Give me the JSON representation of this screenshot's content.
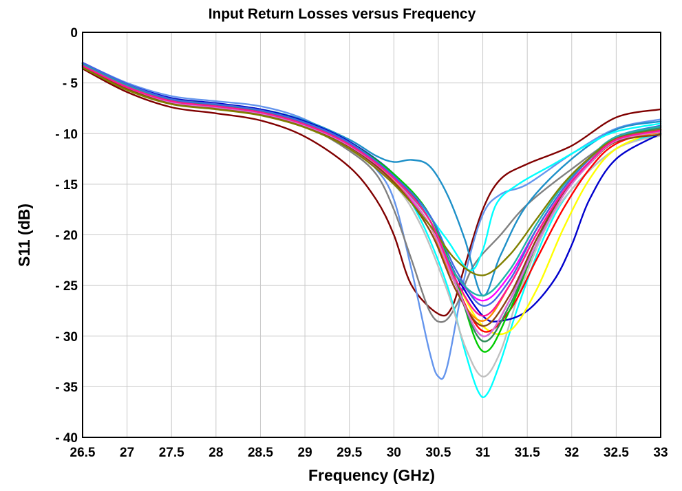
{
  "chart_data": {
    "type": "line",
    "title": "Input Return Losses versus Frequency",
    "xlabel": "Frequency (GHz)",
    "ylabel": "S11 (dB)",
    "xlim": [
      26.5,
      33
    ],
    "ylim": [
      -40,
      0
    ],
    "x_ticks": [
      26.5,
      27,
      27.5,
      28,
      28.5,
      29,
      29.5,
      30,
      30.5,
      31,
      31.5,
      32,
      32.5,
      33
    ],
    "x_tick_labels": [
      "26.5",
      "27",
      "27.5",
      "28",
      "28.5",
      "29",
      "29.5",
      "30",
      "30.5",
      "31",
      "31.5",
      "32",
      "32.5",
      "33"
    ],
    "y_ticks": [
      0,
      -5,
      -10,
      -15,
      -20,
      -25,
      -30,
      -35,
      -40
    ],
    "y_tick_labels": [
      "0",
      "- 5",
      "- 10",
      "- 15",
      "- 20",
      "- 25",
      "- 30",
      "- 35",
      "- 40"
    ],
    "grid": true,
    "legend": "none",
    "series": [
      {
        "color": "#800000",
        "x": [
          26.5,
          27,
          27.5,
          28,
          28.5,
          29,
          29.5,
          29.8,
          30,
          30.2,
          30.5,
          30.65,
          30.8,
          31,
          31.2,
          31.5,
          32,
          32.5,
          33
        ],
        "y": [
          -3.6,
          -5.9,
          -7.4,
          -8.0,
          -8.7,
          -10.3,
          -13.3,
          -16.5,
          -20.0,
          -25.0,
          -27.8,
          -27.2,
          -23.0,
          -17.5,
          -14.5,
          -13.0,
          -11.2,
          -8.4,
          -7.6
        ]
      },
      {
        "color": "#6495ed",
        "x": [
          26.5,
          27,
          27.5,
          28,
          28.5,
          29,
          29.5,
          29.8,
          30,
          30.2,
          30.4,
          30.5,
          30.6,
          30.8,
          31,
          31.2,
          31.5,
          32,
          32.5,
          33
        ],
        "y": [
          -3.0,
          -5.0,
          -6.3,
          -6.8,
          -7.3,
          -8.6,
          -11.2,
          -13.5,
          -16.5,
          -23.5,
          -31.5,
          -34.0,
          -33.0,
          -24.0,
          -18.0,
          -16.0,
          -15.0,
          -12.0,
          -9.5,
          -8.6
        ]
      },
      {
        "color": "#808080",
        "x": [
          26.5,
          27,
          27.5,
          28,
          28.5,
          29,
          29.5,
          29.8,
          30,
          30.2,
          30.4,
          30.55,
          30.7,
          30.9,
          31.2,
          31.5,
          32,
          32.5,
          33
        ],
        "y": [
          -3.4,
          -5.5,
          -6.9,
          -7.4,
          -8.0,
          -9.2,
          -11.7,
          -14.0,
          -17.5,
          -22.5,
          -27.5,
          -28.6,
          -27.0,
          -23.0,
          -20.0,
          -17.0,
          -13.5,
          -10.5,
          -9.3
        ]
      },
      {
        "color": "#1e90c8",
        "x": [
          26.5,
          27,
          27.5,
          28,
          28.5,
          29,
          29.5,
          29.8,
          30,
          30.2,
          30.4,
          30.6,
          30.8,
          31,
          31.2,
          31.5,
          32,
          32.5,
          33
        ],
        "y": [
          -3.2,
          -5.2,
          -6.6,
          -7.1,
          -7.6,
          -8.7,
          -10.6,
          -12.2,
          -12.8,
          -12.6,
          -13.2,
          -16.0,
          -20.5,
          -26.0,
          -22.0,
          -17.0,
          -12.5,
          -9.6,
          -8.8
        ]
      },
      {
        "color": "#00ffff",
        "x": [
          26.5,
          27,
          27.5,
          28,
          28.5,
          29,
          29.5,
          30,
          30.3,
          30.6,
          30.8,
          30.95,
          31.05,
          31.2,
          31.4,
          31.7,
          32,
          32.5,
          33
        ],
        "y": [
          -3.3,
          -5.4,
          -6.8,
          -7.3,
          -7.9,
          -9.0,
          -11.0,
          -14.5,
          -18.5,
          -25.0,
          -31.5,
          -35.5,
          -35.7,
          -32.5,
          -27.0,
          -20.0,
          -15.5,
          -11.5,
          -10.0
        ]
      },
      {
        "color": "#c0c0c0",
        "x": [
          26.5,
          27,
          27.5,
          28,
          28.5,
          29,
          29.5,
          30,
          30.3,
          30.6,
          30.8,
          31,
          31.2,
          31.4,
          31.7,
          32,
          32.5,
          33
        ],
        "y": [
          -3.4,
          -5.6,
          -7.0,
          -7.5,
          -8.1,
          -9.3,
          -11.5,
          -15.0,
          -19.0,
          -25.5,
          -31.0,
          -34.0,
          -31.5,
          -26.0,
          -19.5,
          -15.5,
          -11.5,
          -10.2
        ]
      },
      {
        "color": "#00ffff",
        "x": [
          26.5,
          27,
          27.5,
          28,
          28.5,
          29,
          29.5,
          30,
          30.3,
          30.6,
          30.85,
          31,
          31.15,
          31.4,
          31.8,
          32.2,
          32.5,
          33
        ],
        "y": [
          -3.1,
          -5.2,
          -6.6,
          -7.1,
          -7.7,
          -8.9,
          -10.9,
          -14.0,
          -17.0,
          -20.5,
          -23.5,
          -21.5,
          -17.0,
          -15.0,
          -13.0,
          -11.0,
          -9.8,
          -9.0
        ]
      },
      {
        "color": "#0000cd",
        "x": [
          26.5,
          27,
          27.5,
          28,
          28.5,
          29,
          29.5,
          30,
          30.4,
          30.7,
          31,
          31.2,
          31.5,
          31.8,
          32,
          32.2,
          32.5,
          33
        ],
        "y": [
          -3.0,
          -5.1,
          -6.5,
          -7.0,
          -7.6,
          -8.8,
          -10.8,
          -14.0,
          -18.5,
          -24.0,
          -28.0,
          -28.5,
          -27.5,
          -24.5,
          -21.0,
          -16.5,
          -12.5,
          -10.0
        ]
      },
      {
        "color": "#ffff00",
        "x": [
          26.5,
          27,
          27.5,
          28,
          28.5,
          29,
          29.5,
          30,
          30.4,
          30.7,
          31,
          31.3,
          31.6,
          31.9,
          32.2,
          32.5,
          33
        ],
        "y": [
          -3.2,
          -5.3,
          -6.7,
          -7.2,
          -7.8,
          -9.0,
          -11.0,
          -14.2,
          -18.5,
          -24.5,
          -29.0,
          -29.5,
          -25.5,
          -19.5,
          -14.5,
          -11.5,
          -9.6
        ]
      },
      {
        "color": "#ff0000",
        "x": [
          26.5,
          27,
          27.5,
          28,
          28.5,
          29,
          29.5,
          30,
          30.4,
          30.7,
          31,
          31.3,
          31.6,
          31.9,
          32.2,
          32.5,
          33
        ],
        "y": [
          -3.3,
          -5.4,
          -6.9,
          -7.4,
          -8.0,
          -9.2,
          -11.2,
          -14.5,
          -19.0,
          -25.0,
          -29.5,
          -27.5,
          -22.5,
          -17.5,
          -13.5,
          -11.0,
          -9.6
        ]
      },
      {
        "color": "#00cc00",
        "x": [
          26.5,
          27,
          27.5,
          28,
          28.5,
          29,
          29.5,
          30,
          30.4,
          30.7,
          31,
          31.3,
          31.6,
          31.9,
          32.2,
          32.5,
          33
        ],
        "y": [
          -3.1,
          -5.2,
          -6.6,
          -7.1,
          -7.7,
          -8.9,
          -10.9,
          -14.0,
          -18.0,
          -24.5,
          -31.5,
          -27.5,
          -21.0,
          -16.0,
          -12.8,
          -10.5,
          -9.3
        ]
      },
      {
        "color": "#ff00ff",
        "x": [
          26.5,
          27,
          27.5,
          28,
          28.5,
          29,
          29.5,
          30,
          30.4,
          30.7,
          31,
          31.3,
          31.6,
          31.9,
          32.2,
          32.5,
          33
        ],
        "y": [
          -3.4,
          -5.5,
          -7.0,
          -7.5,
          -8.1,
          -9.3,
          -11.3,
          -14.8,
          -19.0,
          -24.0,
          -26.5,
          -24.0,
          -19.5,
          -15.5,
          -12.5,
          -10.4,
          -9.5
        ]
      },
      {
        "color": "#9370db",
        "x": [
          26.5,
          27,
          27.5,
          28,
          28.5,
          29,
          29.5,
          30,
          30.4,
          30.7,
          31,
          31.3,
          31.6,
          31.9,
          32.2,
          32.5,
          33
        ],
        "y": [
          -3.2,
          -5.3,
          -6.8,
          -7.3,
          -7.9,
          -9.1,
          -11.1,
          -14.4,
          -18.5,
          -25.0,
          -30.0,
          -26.5,
          -20.5,
          -16.0,
          -12.8,
          -10.6,
          -9.7
        ]
      },
      {
        "color": "#ff8c00",
        "x": [
          26.5,
          27,
          27.5,
          28,
          28.5,
          29,
          29.5,
          30,
          30.4,
          30.7,
          31,
          31.3,
          31.6,
          31.9,
          32.2,
          32.5,
          33
        ],
        "y": [
          -3.3,
          -5.4,
          -6.9,
          -7.4,
          -8.0,
          -9.2,
          -11.2,
          -14.6,
          -19.0,
          -25.5,
          -28.5,
          -25.0,
          -20.0,
          -15.8,
          -12.8,
          -10.7,
          -9.9
        ]
      },
      {
        "color": "#2e8b57",
        "x": [
          26.5,
          27,
          27.5,
          28,
          28.5,
          29,
          29.5,
          30,
          30.4,
          30.7,
          31,
          31.3,
          31.6,
          31.9,
          32.2,
          32.5,
          33
        ],
        "y": [
          -3.1,
          -5.2,
          -6.7,
          -7.2,
          -7.8,
          -9.0,
          -11.0,
          -14.3,
          -18.5,
          -25.0,
          -30.5,
          -27.0,
          -21.0,
          -16.0,
          -12.8,
          -10.5,
          -9.4
        ]
      },
      {
        "color": "#8b4513",
        "x": [
          26.5,
          27,
          27.5,
          28,
          28.5,
          29,
          29.5,
          30,
          30.4,
          30.7,
          31,
          31.3,
          31.6,
          31.9,
          32.2,
          32.5,
          33
        ],
        "y": [
          -3.4,
          -5.6,
          -7.0,
          -7.5,
          -8.1,
          -9.3,
          -11.3,
          -14.8,
          -19.5,
          -25.5,
          -29.0,
          -26.0,
          -20.5,
          -16.0,
          -13.0,
          -10.8,
          -10.1
        ]
      },
      {
        "color": "#4169e1",
        "x": [
          26.5,
          27,
          27.5,
          28,
          28.5,
          29,
          29.5,
          30,
          30.4,
          30.7,
          31,
          31.3,
          31.6,
          31.9,
          32.2,
          32.5,
          33
        ],
        "y": [
          -3.0,
          -5.1,
          -6.6,
          -7.1,
          -7.7,
          -8.9,
          -10.9,
          -14.2,
          -18.0,
          -23.5,
          -27.0,
          -24.5,
          -19.5,
          -15.5,
          -12.5,
          -10.3,
          -9.2
        ]
      },
      {
        "color": "#da70d6",
        "x": [
          26.5,
          27,
          27.5,
          28,
          28.5,
          29,
          29.5,
          30,
          30.4,
          30.7,
          31,
          31.3,
          31.6,
          31.9,
          32.2,
          32.5,
          33
        ],
        "y": [
          -3.3,
          -5.4,
          -6.9,
          -7.4,
          -8.0,
          -9.2,
          -11.2,
          -14.5,
          -19.0,
          -25.0,
          -30.0,
          -26.5,
          -21.0,
          -16.2,
          -13.0,
          -10.7,
          -9.8
        ]
      },
      {
        "color": "#20b2aa",
        "x": [
          26.5,
          27,
          27.5,
          28,
          28.5,
          29,
          29.5,
          30,
          30.4,
          30.7,
          31,
          31.3,
          31.6,
          31.9,
          32.2,
          32.5,
          33
        ],
        "y": [
          -3.2,
          -5.3,
          -6.8,
          -7.3,
          -7.9,
          -9.1,
          -11.1,
          -14.4,
          -18.5,
          -24.0,
          -26.0,
          -23.5,
          -19.0,
          -15.2,
          -12.4,
          -10.3,
          -9.3
        ]
      },
      {
        "color": "#808000",
        "x": [
          26.5,
          27,
          27.5,
          28,
          28.5,
          29,
          29.5,
          30,
          30.4,
          30.7,
          31,
          31.3,
          31.6,
          31.9,
          32.2,
          32.5,
          33
        ],
        "y": [
          -3.5,
          -5.7,
          -7.1,
          -7.6,
          -8.2,
          -9.4,
          -11.5,
          -15.0,
          -19.0,
          -22.5,
          -24.0,
          -22.0,
          -18.5,
          -15.0,
          -12.4,
          -10.5,
          -9.6
        ]
      },
      {
        "color": "#ff1493",
        "x": [
          26.5,
          27,
          27.5,
          28,
          28.5,
          29,
          29.5,
          30,
          30.4,
          30.7,
          31,
          31.3,
          31.6,
          31.9,
          32.2,
          32.5,
          33
        ],
        "y": [
          -3.3,
          -5.4,
          -6.8,
          -7.3,
          -7.9,
          -9.1,
          -11.1,
          -14.4,
          -18.5,
          -24.5,
          -28.0,
          -25.0,
          -20.0,
          -15.8,
          -12.8,
          -10.6,
          -9.7
        ]
      }
    ]
  }
}
